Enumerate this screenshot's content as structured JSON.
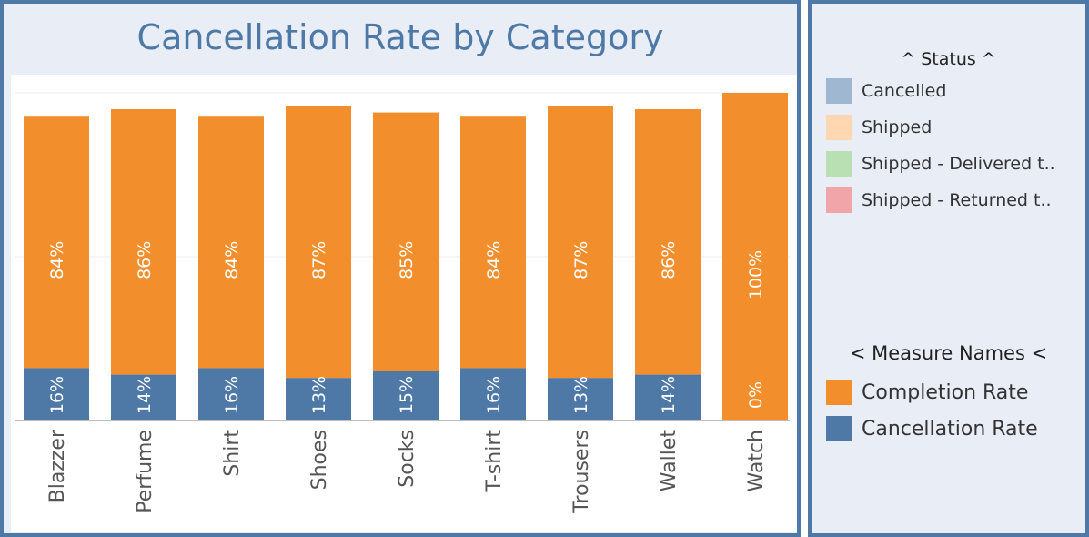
{
  "chart_data": {
    "type": "bar",
    "stacked": true,
    "title": "Cancellation Rate by Category",
    "categories": [
      "Blazzer",
      "Perfume",
      "Shirt",
      "Shoes",
      "Socks",
      "T-shirt",
      "Trousers",
      "Wallet",
      "Watch"
    ],
    "series": [
      {
        "name": "Cancellation Rate",
        "values": [
          16,
          14,
          16,
          13,
          15,
          16,
          13,
          14,
          0
        ],
        "labels": [
          "16%",
          "14%",
          "16%",
          "13%",
          "15%",
          "16%",
          "13%",
          "14%",
          "0%"
        ],
        "color": "#4e79a7"
      },
      {
        "name": "Completion Rate",
        "values": [
          84,
          86,
          84,
          87,
          85,
          84,
          87,
          86,
          100
        ],
        "labels": [
          "84%",
          "86%",
          "84%",
          "87%",
          "85%",
          "84%",
          "87%",
          "86%",
          "100%"
        ],
        "color": "#f28e2b"
      }
    ],
    "bar_max": [
      100,
      100,
      100,
      100,
      100,
      100,
      100,
      100,
      100
    ],
    "bar_heights_observed": [
      93,
      95,
      93,
      96,
      94,
      93,
      96,
      95,
      100
    ],
    "ylim": [
      0,
      100
    ],
    "grid": true
  },
  "legend": {
    "status_title": "^ Status ^",
    "status_items": [
      {
        "label": "Cancelled",
        "color": "#a0b7d2"
      },
      {
        "label": "Shipped",
        "color": "#ffd8b1"
      },
      {
        "label": "Shipped - Delivered t..",
        "color": "#b9e0b2"
      },
      {
        "label": "Shipped - Returned t..",
        "color": "#f1a5a8"
      }
    ],
    "measure_title": "< Measure Names <",
    "measure_items": [
      {
        "label": "Completion Rate",
        "color": "#f28e2b"
      },
      {
        "label": "Cancellation Rate",
        "color": "#4e79a7"
      }
    ]
  }
}
